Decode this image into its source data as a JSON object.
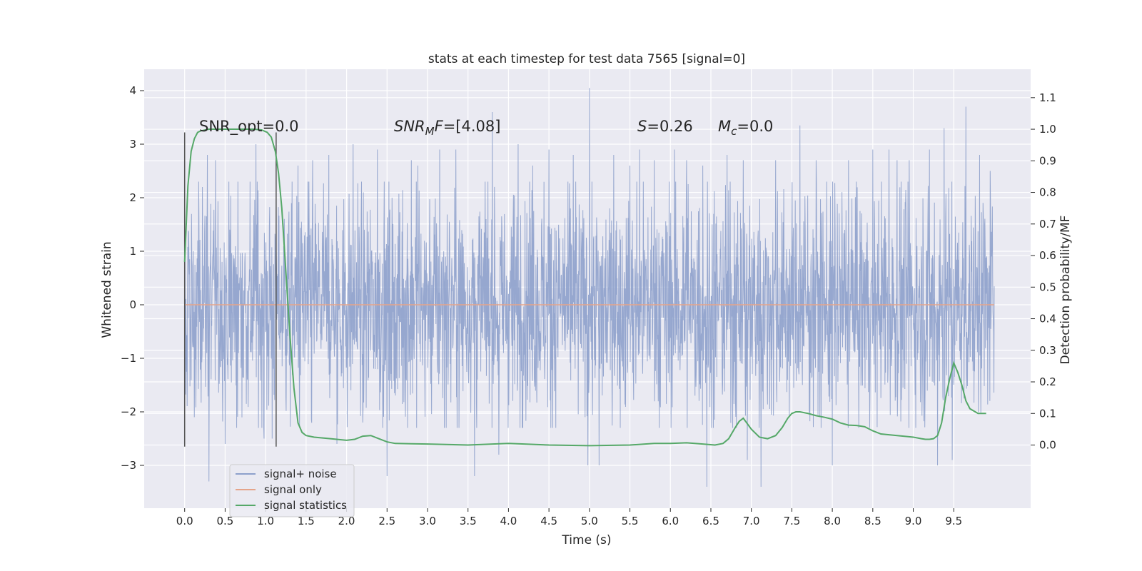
{
  "chart_data": {
    "type": "line",
    "title": "stats at each timestep for test data 7565 [signal=0]",
    "xlabel": "Time (s)",
    "ylabel": "Whitened strain",
    "y2label": "Detection probability/MF",
    "xlim": [
      -0.5,
      10.45
    ],
    "ylim": [
      -3.8,
      4.4
    ],
    "y2lim": [
      -0.2,
      1.19
    ],
    "x_ticks": [
      "0.0",
      "0.5",
      "1.0",
      "1.5",
      "2.0",
      "2.5",
      "3.0",
      "3.5",
      "4.0",
      "4.5",
      "5.0",
      "5.5",
      "6.0",
      "6.5",
      "7.0",
      "7.5",
      "8.0",
      "8.5",
      "9.0",
      "9.5"
    ],
    "y_ticks": [
      "4",
      "3",
      "2",
      "1",
      "0",
      "−1",
      "−2",
      "−3"
    ],
    "y2_ticks": [
      "1.1",
      "1.0",
      "0.9",
      "0.8",
      "0.7",
      "0.6",
      "0.5",
      "0.4",
      "0.3",
      "0.2",
      "0.1",
      "0.0"
    ],
    "grid": true,
    "legend_placement": "lower-left",
    "series": [
      {
        "name": "signal+ noise",
        "color": "#8da0cb",
        "x_range": [
          0.0,
          10.0
        ],
        "typical_amplitude": 1.35,
        "peaks": [
          [
            0.22,
            2.2
          ],
          [
            0.28,
            2.8
          ],
          [
            0.38,
            2.7
          ],
          [
            0.3,
            -3.3
          ],
          [
            0.12,
            -2.1
          ],
          [
            0.5,
            -2.6
          ],
          [
            0.88,
            3.0
          ],
          [
            0.98,
            -2.5
          ],
          [
            1.08,
            -2.5
          ],
          [
            1.4,
            2.6
          ],
          [
            1.58,
            2.7
          ],
          [
            1.78,
            2.8
          ],
          [
            1.88,
            -2.6
          ],
          [
            2.08,
            3.0
          ],
          [
            2.2,
            -2.2
          ],
          [
            2.38,
            2.9
          ],
          [
            2.5,
            -3.2
          ],
          [
            2.8,
            2.7
          ],
          [
            2.88,
            2.6
          ],
          [
            3.15,
            2.9
          ],
          [
            3.35,
            2.9
          ],
          [
            3.58,
            -3.2
          ],
          [
            3.8,
            3.6
          ],
          [
            3.88,
            -2.8
          ],
          [
            4.12,
            3.0
          ],
          [
            4.3,
            2.6
          ],
          [
            4.5,
            2.9
          ],
          [
            4.8,
            2.8
          ],
          [
            4.98,
            -3.0
          ],
          [
            5.0,
            4.05
          ],
          [
            5.12,
            -3.0
          ],
          [
            5.3,
            2.8
          ],
          [
            5.5,
            2.6
          ],
          [
            5.62,
            2.9
          ],
          [
            5.8,
            2.7
          ],
          [
            6.05,
            2.9
          ],
          [
            6.2,
            2.7
          ],
          [
            6.4,
            2.6
          ],
          [
            6.45,
            -3.4
          ],
          [
            6.7,
            2.8
          ],
          [
            6.9,
            2.7
          ],
          [
            6.95,
            -2.9
          ],
          [
            7.12,
            -3.4
          ],
          [
            7.3,
            2.7
          ],
          [
            7.6,
            3.35
          ],
          [
            7.8,
            2.7
          ],
          [
            8.0,
            -3.0
          ],
          [
            8.2,
            2.7
          ],
          [
            8.5,
            2.9
          ],
          [
            8.7,
            2.9
          ],
          [
            8.8,
            2.7
          ],
          [
            8.95,
            2.7
          ],
          [
            9.2,
            2.9
          ],
          [
            9.3,
            -3.0
          ],
          [
            9.38,
            3.3
          ],
          [
            9.48,
            -2.9
          ],
          [
            9.65,
            3.7
          ],
          [
            9.82,
            2.8
          ],
          [
            9.95,
            2.5
          ]
        ]
      },
      {
        "name": "signal only",
        "color": "#e5a48a",
        "x": [
          0.0,
          10.0
        ],
        "y": [
          0.0,
          0.0
        ]
      },
      {
        "name": "signal statistics",
        "color": "#55a868",
        "axis": "right",
        "x": [
          0.0,
          0.04,
          0.08,
          0.12,
          0.16,
          0.2,
          0.3,
          0.5,
          0.7,
          0.85,
          0.95,
          1.02,
          1.07,
          1.12,
          1.16,
          1.2,
          1.25,
          1.3,
          1.35,
          1.4,
          1.45,
          1.5,
          1.6,
          1.8,
          2.0,
          2.1,
          2.2,
          2.3,
          2.4,
          2.5,
          2.6,
          2.8,
          3.0,
          3.5,
          4.0,
          4.5,
          5.0,
          5.5,
          5.8,
          6.0,
          6.2,
          6.4,
          6.55,
          6.65,
          6.72,
          6.8,
          6.85,
          6.9,
          7.0,
          7.1,
          7.2,
          7.3,
          7.38,
          7.45,
          7.5,
          7.55,
          7.6,
          7.7,
          7.8,
          7.9,
          8.0,
          8.1,
          8.2,
          8.3,
          8.4,
          8.5,
          8.6,
          8.8,
          9.0,
          9.1,
          9.15,
          9.2,
          9.25,
          9.3,
          9.35,
          9.4,
          9.45,
          9.5,
          9.55,
          9.6,
          9.65,
          9.7,
          9.8,
          9.9
        ],
        "y": [
          0.58,
          0.82,
          0.93,
          0.97,
          0.99,
          0.995,
          1.0,
          1.0,
          1.0,
          1.0,
          0.998,
          0.99,
          0.975,
          0.93,
          0.86,
          0.75,
          0.55,
          0.35,
          0.18,
          0.07,
          0.04,
          0.03,
          0.025,
          0.02,
          0.015,
          0.018,
          0.028,
          0.03,
          0.02,
          0.01,
          0.005,
          0.004,
          0.003,
          0.0,
          0.005,
          0.0,
          -0.002,
          0.0,
          0.005,
          0.005,
          0.007,
          0.003,
          0.0,
          0.005,
          0.02,
          0.055,
          0.075,
          0.085,
          0.05,
          0.025,
          0.02,
          0.03,
          0.055,
          0.085,
          0.1,
          0.105,
          0.105,
          0.1,
          0.093,
          0.088,
          0.082,
          0.07,
          0.063,
          0.062,
          0.058,
          0.045,
          0.035,
          0.03,
          0.025,
          0.02,
          0.018,
          0.018,
          0.02,
          0.03,
          0.07,
          0.15,
          0.21,
          0.26,
          0.23,
          0.19,
          0.14,
          0.115,
          0.1,
          0.1
        ]
      }
    ],
    "vlines": [
      {
        "x": 0.0,
        "ymin": -2.65,
        "ymax": 3.22
      },
      {
        "x": 1.13,
        "ymin": -2.65,
        "ymax": 3.22
      }
    ],
    "annotations": [
      {
        "x": 0.2,
        "y": 3.25,
        "label": "SNR_opt=0.0"
      },
      {
        "x": 2.6,
        "y": 3.25,
        "label": "SNR_MF=[4.08]"
      },
      {
        "x": 5.6,
        "y": 3.25,
        "label": "S=0.26"
      },
      {
        "x": 6.6,
        "y": 3.25,
        "label": "M_c=0.0"
      }
    ]
  },
  "annotation_parts": {
    "snr_opt": "SNR_opt=0.0",
    "snr_mf_base": "SNR",
    "snr_mf_sub": "M",
    "snr_mf_tail": "F",
    "snr_mf_value": "=[4.08]",
    "s_symbol": "S",
    "s_value": "=0.26",
    "mc_symbol": "M",
    "mc_sub": "c",
    "mc_value": "=0.0"
  },
  "colors": {
    "plot_background": "#eaeaf2",
    "grid": "#ffffff",
    "vline": "#555555"
  }
}
